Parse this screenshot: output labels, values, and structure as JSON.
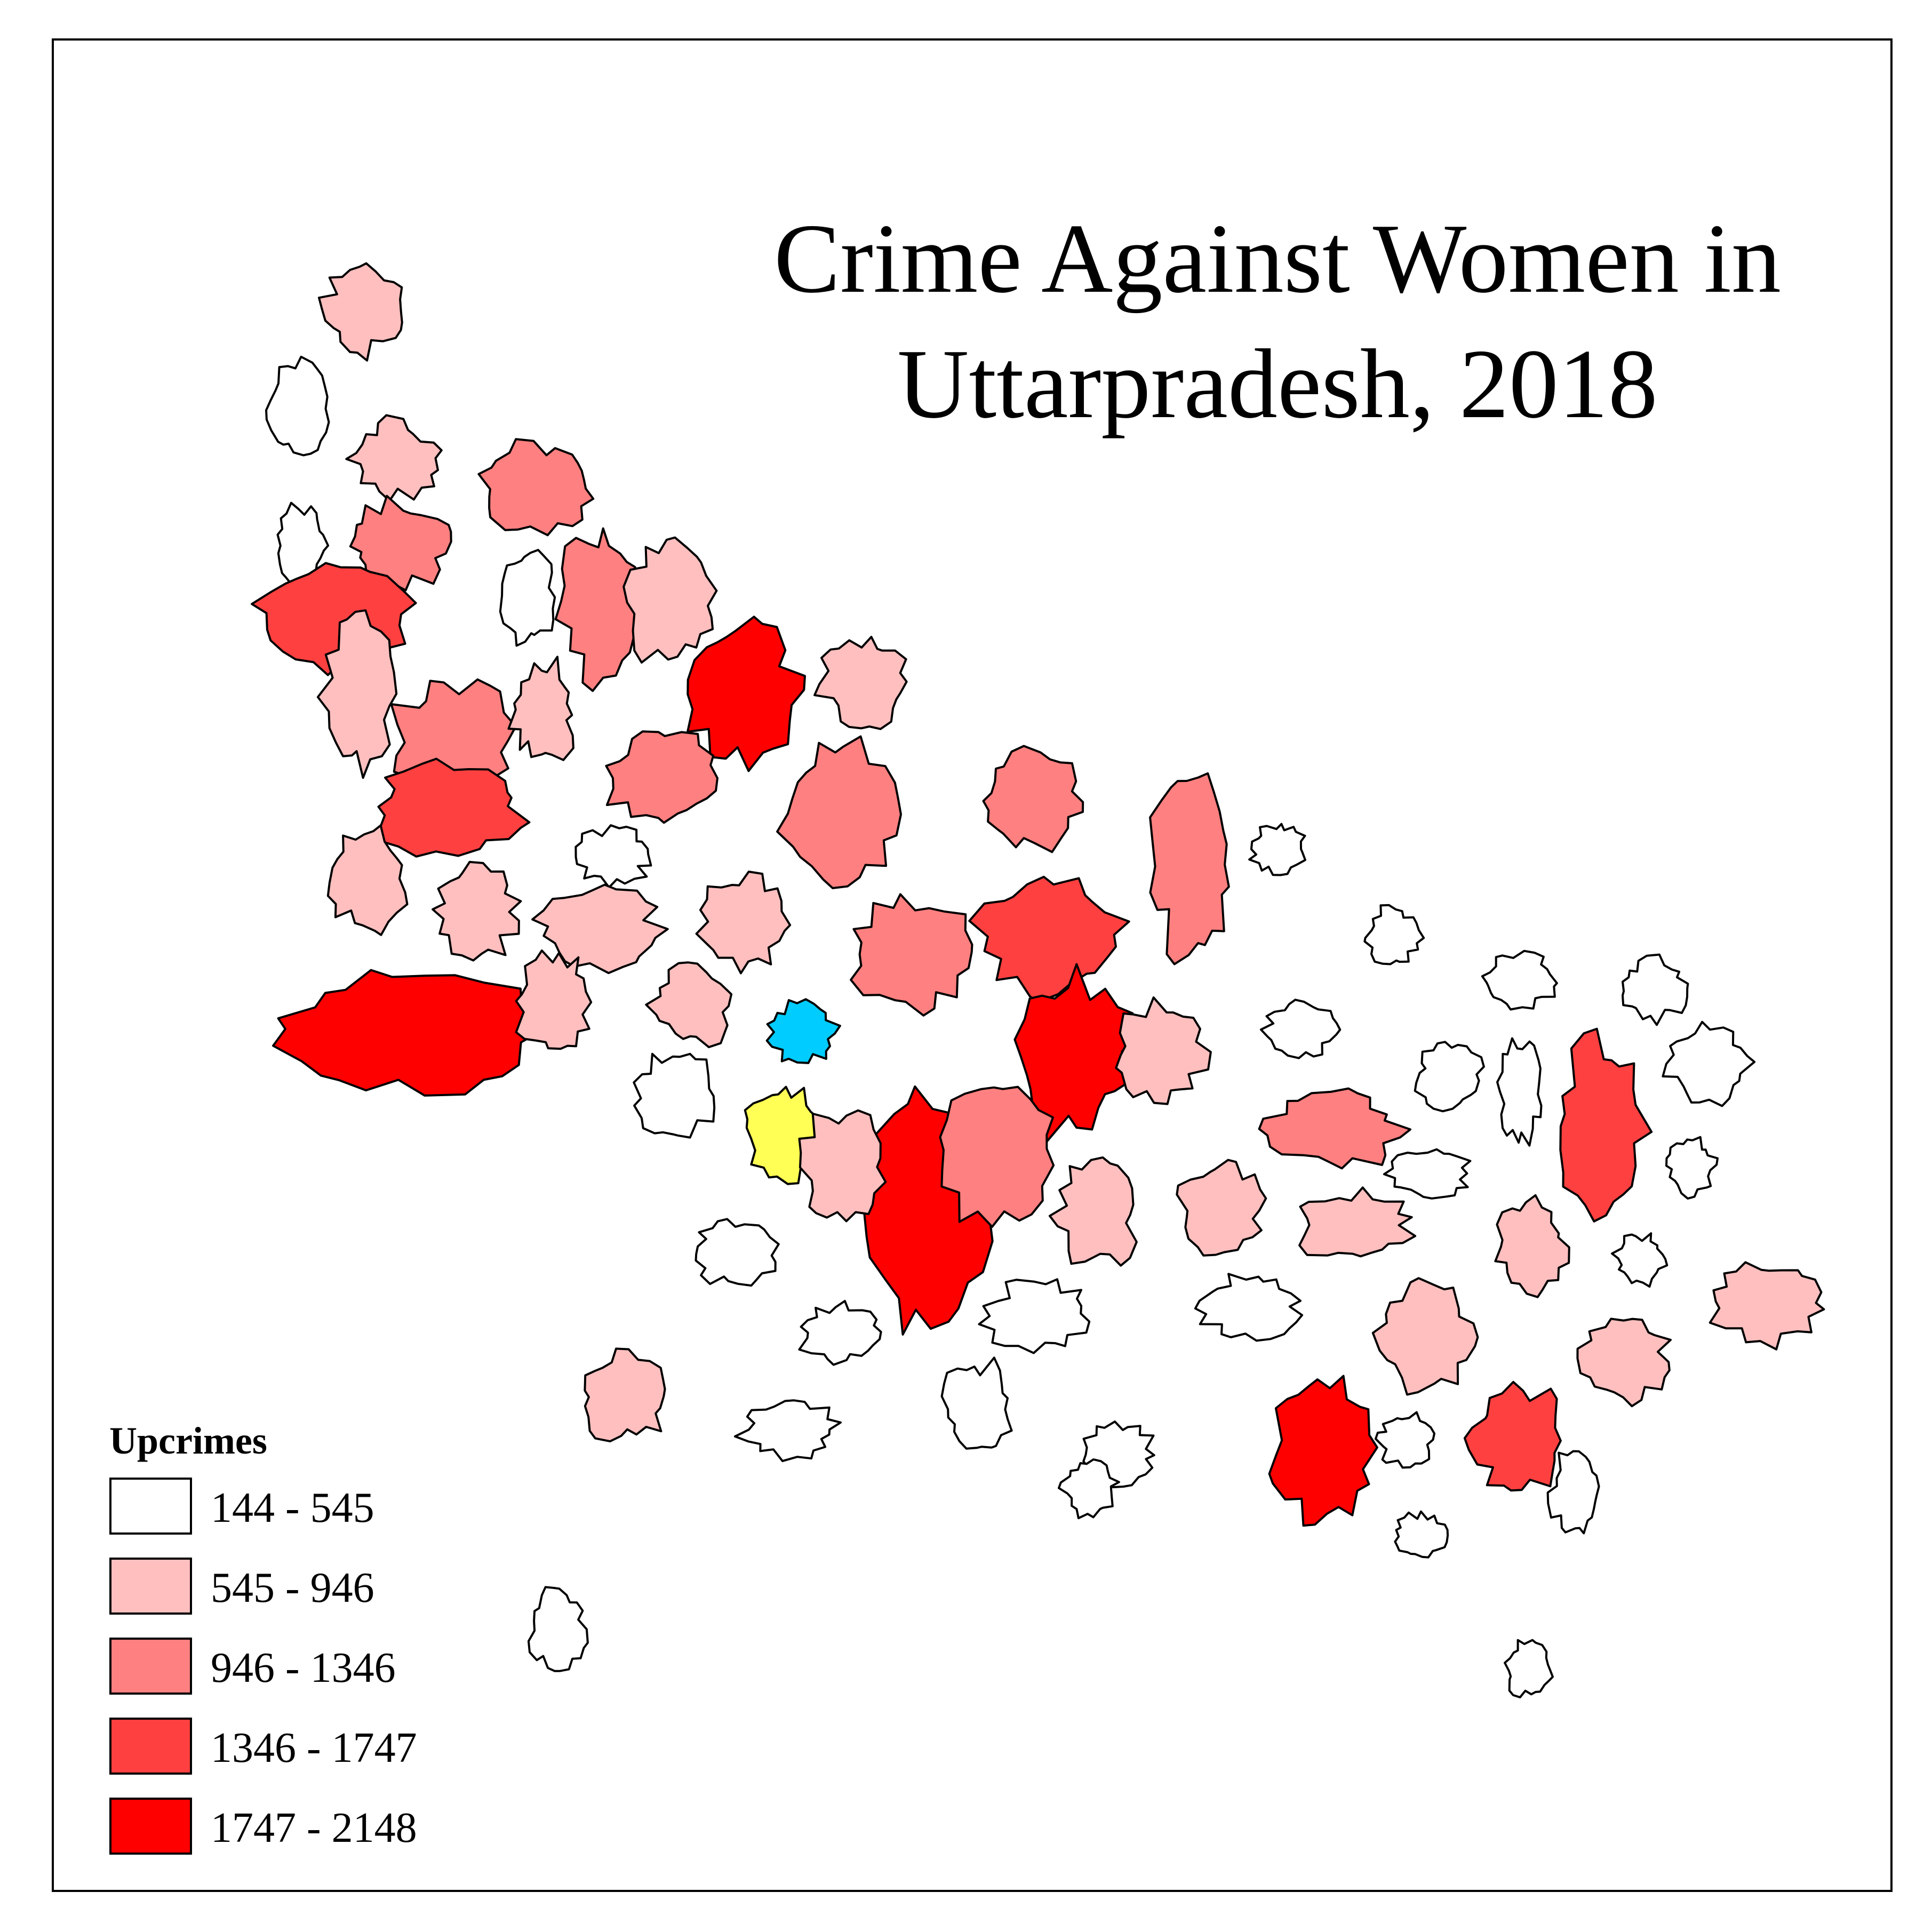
{
  "map": {
    "title_line1": "Crime Against Women in",
    "title_line2": "Uttarpradesh, 2018",
    "legend": {
      "title": "Upcrimes",
      "classes": [
        {
          "label": "144 - 545",
          "color": "#ffffff"
        },
        {
          "label": "545 - 946",
          "color": "#ffbfbf"
        },
        {
          "label": "946 - 1346",
          "color": "#ff8080"
        },
        {
          "label": "1346 - 1747",
          "color": "#ff4040"
        },
        {
          "label": "1747 - 2148",
          "color": "#ff0000"
        }
      ]
    },
    "highlight_colors": {
      "cyan": "#00ccff",
      "yellow": "#ffff55"
    },
    "outline_color": "#000000"
  }
}
